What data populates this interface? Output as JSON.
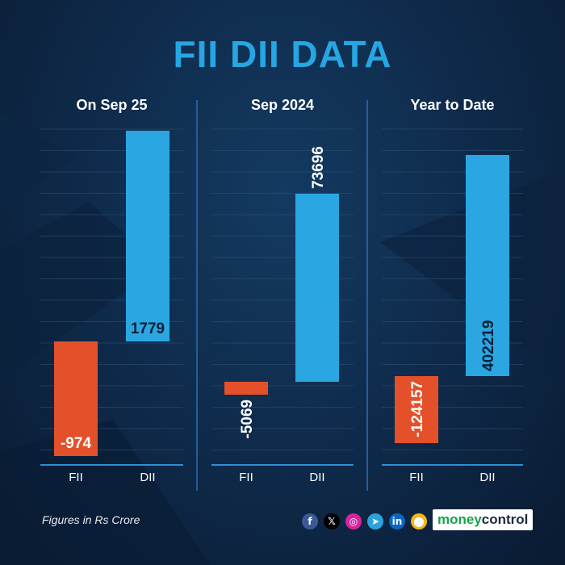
{
  "title": "FII DII DATA",
  "footer": "Figures in Rs Crore",
  "brand": {
    "part1": "money",
    "part2": "control"
  },
  "social": [
    {
      "icon": "facebook-icon",
      "glyph": "f",
      "color": "#3b5998"
    },
    {
      "icon": "x-icon",
      "glyph": "𝕏",
      "color": "#000000"
    },
    {
      "icon": "instagram-icon",
      "glyph": "◎",
      "color": "#d6249f"
    },
    {
      "icon": "telegram-icon",
      "glyph": "➤",
      "color": "#2aa3dc"
    },
    {
      "icon": "linkedin-icon",
      "glyph": "in",
      "color": "#0a66c2"
    },
    {
      "icon": "sharechat-icon",
      "glyph": "⬤",
      "color": "#f5b715"
    }
  ],
  "colors": {
    "fii": "#e4502a",
    "dii": "#2aa7e3",
    "title": "#26a6e3",
    "axis": "#2b8fd6"
  },
  "chart_data": [
    {
      "type": "bar",
      "title": "On Sep 25",
      "categories": [
        "FII",
        "DII"
      ],
      "values": [
        -974,
        1779
      ]
    },
    {
      "type": "bar",
      "title": "Sep 2024",
      "categories": [
        "FII",
        "DII"
      ],
      "values": [
        -5069,
        73696
      ]
    },
    {
      "type": "bar",
      "title": "Year to Date",
      "categories": [
        "FII",
        "DII"
      ],
      "values": [
        -124157,
        402219
      ]
    }
  ]
}
